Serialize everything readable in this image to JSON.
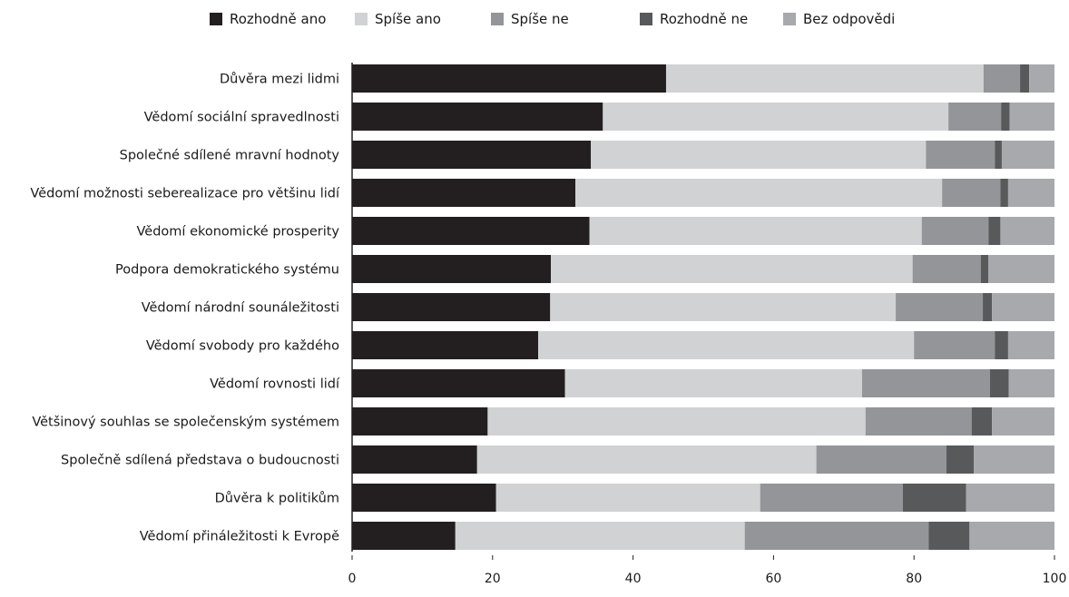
{
  "colors": {
    "rozhodne_ano": "#231f20",
    "spise_ano": "#d1d2d4",
    "spise_ne": "#939598",
    "rozhodne_ne": "#58595b",
    "bez_odpovedi": "#a7a9ac",
    "axis": "#231f20"
  },
  "chart_data": {
    "type": "bar",
    "orientation": "horizontal",
    "stacked": true,
    "title": "",
    "xlabel": "",
    "ylabel": "",
    "xlim": [
      0,
      100
    ],
    "xticks": [
      0,
      20,
      40,
      60,
      80,
      100
    ],
    "grid": false,
    "legend_position": "top",
    "categories": [
      "Důvěra mezi lidmi",
      "Vědomí sociální spravedlnosti",
      "Společné sdílené mravní hodnoty",
      "Vědomí možnosti seberealizace pro většinu lidí",
      "Vědomí ekonomické prosperity",
      "Podpora demokratického systému",
      "Vědomí národní sounáležitosti",
      "Vědomí svobody pro každého",
      "Vědomí rovnosti lidí",
      "Většinový souhlas se společenským systémem",
      "Společně sdílená představa o budoucnosti",
      "Důvěra k politikům",
      "Vědomí přináležitosti k Evropě"
    ],
    "series": [
      {
        "name": "Rozhodně ano",
        "color_key": "rozhodne_ano",
        "values": [
          44.7,
          35.7,
          34.0,
          31.8,
          33.8,
          28.3,
          28.2,
          26.5,
          30.3,
          19.3,
          17.8,
          20.5,
          14.7
        ]
      },
      {
        "name": "Spíše ano",
        "color_key": "spise_ano",
        "values": [
          45.2,
          49.2,
          47.7,
          52.2,
          47.3,
          51.5,
          49.2,
          53.5,
          42.3,
          53.8,
          48.3,
          37.6,
          41.2
        ]
      },
      {
        "name": "Spíše ne",
        "color_key": "spise_ne",
        "values": [
          5.2,
          7.5,
          9.8,
          8.3,
          9.5,
          9.7,
          12.4,
          11.5,
          18.2,
          15.1,
          18.5,
          20.3,
          26.2
        ]
      },
      {
        "name": "Rozhodně ne",
        "color_key": "rozhodne_ne",
        "values": [
          1.3,
          1.2,
          1.0,
          1.1,
          1.7,
          1.1,
          1.3,
          1.9,
          2.7,
          2.9,
          3.9,
          9.0,
          5.8
        ]
      },
      {
        "name": "Bez odpovědi",
        "color_key": "bez_odpovedi",
        "values": [
          3.6,
          6.4,
          7.5,
          6.6,
          7.7,
          9.4,
          8.9,
          6.6,
          6.5,
          8.9,
          11.5,
          12.6,
          12.1
        ]
      }
    ]
  }
}
